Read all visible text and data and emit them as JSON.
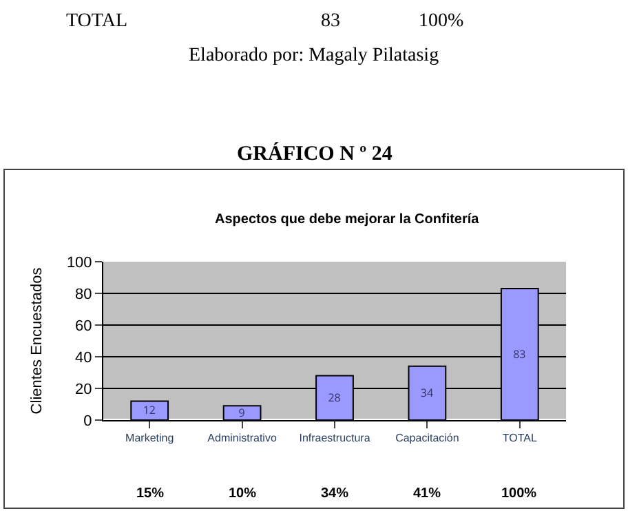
{
  "chart_data": {
    "type": "bar",
    "title": "GRÁFICO N º 24",
    "subtitle": "Aspectos que debe mejorar la Confitería",
    "ylabel": "Clientes Encuestados",
    "categories": [
      "Marketing",
      "Administrativo",
      "Infraestructura",
      "Capacitación",
      "TOTAL"
    ],
    "values": [
      12,
      9,
      28,
      34,
      83
    ],
    "color": "#9999ff",
    "data_labels": true,
    "ylim": [
      0,
      100
    ],
    "yticks": [
      0,
      20,
      40,
      60,
      80,
      100
    ],
    "grid": "y",
    "legend": false,
    "annotations": [
      "TOTAL",
      "83",
      "100%",
      "Elaborado por: Magaly Pilatasig",
      "15%",
      "10%",
      "34%",
      "41%",
      "100%"
    ]
  }
}
